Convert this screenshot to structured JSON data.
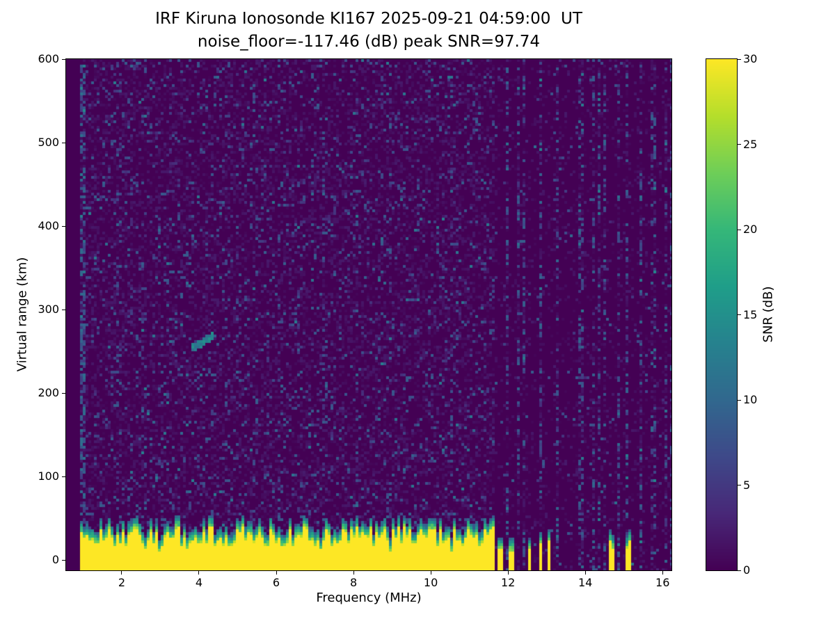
{
  "chart_data": {
    "type": "heatmap",
    "title": "IRF Kiruna Ionosonde KI167 2025-09-21 04:59:00  UT",
    "subtitle": "noise_floor=-117.46 (dB) peak SNR=97.74",
    "xlabel": "Frequency (MHz)",
    "ylabel": "Virtual range (km)",
    "x_ticks": [
      2,
      4,
      6,
      8,
      10,
      12,
      14,
      16
    ],
    "y_ticks": [
      0,
      100,
      200,
      300,
      400,
      500,
      600
    ],
    "x_range_mhz": [
      0.56,
      16.23
    ],
    "y_range_km": [
      -12.5,
      600
    ],
    "noise_floor_db": -117.46,
    "peak_snr_db": 97.74,
    "colorbar": {
      "label": "SNR (dB)",
      "ticks": [
        0,
        5,
        10,
        15,
        20,
        25,
        30
      ],
      "range": [
        0,
        30
      ]
    },
    "colormap": {
      "name": "viridis",
      "stops": [
        "#440154",
        "#482878",
        "#3e4989",
        "#31688e",
        "#26828e",
        "#1f9e89",
        "#35b779",
        "#6ece58",
        "#b5de2b",
        "#fde725"
      ]
    },
    "features": {
      "data_start_mhz": 0.93,
      "left_edge_noise_stripe_mhz": [
        0.93,
        1.1
      ],
      "interference_band_start_mhz": 11.62,
      "ground_clutter": {
        "top_km_mean": 28,
        "top_km_jitter": 12,
        "fringe_km": 14,
        "solid_until_mhz": 11.62,
        "dense_sparse_until_mhz": 13.1,
        "sparse_until_mhz": 16.2,
        "dense_duty": 0.42,
        "sparse_duty": 0.1
      },
      "echo_trace": {
        "f_start_mhz": 3.78,
        "f_end_mhz": 4.35,
        "range_start_km": 252,
        "range_end_km": 268,
        "snr_db": 13
      }
    },
    "noise": {
      "speckle_prob": 0.1,
      "speckle_db": [
        3,
        9
      ],
      "seed": 167
    }
  }
}
